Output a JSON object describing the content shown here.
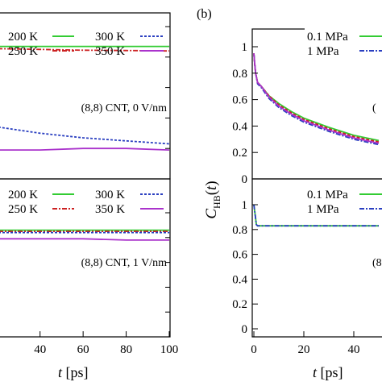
{
  "panel_b_label": "(b)",
  "colors": {
    "200K": "#33cc33",
    "250K": "#cc2222",
    "300K": "#2a3fc0",
    "350K": "#aa33cc",
    "0.1MPa": "#33cc33",
    "1MPa": "#2a3fc0",
    "pressure_other_1": "#cc2222",
    "pressure_other_2": "#aa33cc"
  },
  "chart_data": [
    {
      "type": "line",
      "panel": "left-top",
      "annotation": "(8,8) CNT, 0 V/nm",
      "xlim": [
        0,
        100
      ],
      "ylim": [
        0,
        1
      ],
      "legend": [
        "200 K",
        "250 K",
        "300 K",
        "350 K"
      ],
      "series": [
        {
          "name": "200 K",
          "x": [
            0,
            20,
            40,
            60,
            80,
            100
          ],
          "y": [
            0.87,
            0.87,
            0.87,
            0.87,
            0.87,
            0.87
          ]
        },
        {
          "name": "250 K",
          "x": [
            0,
            20,
            40,
            60,
            80,
            100
          ],
          "y": [
            0.86,
            0.855,
            0.85,
            0.845,
            0.843,
            0.84
          ]
        },
        {
          "name": "300 K",
          "x": [
            0,
            20,
            40,
            60,
            80,
            100
          ],
          "y": [
            0.42,
            0.34,
            0.3,
            0.27,
            0.25,
            0.23
          ]
        },
        {
          "name": "350 K",
          "x": [
            0,
            20,
            40,
            60,
            80,
            100
          ],
          "y": [
            0.2,
            0.19,
            0.19,
            0.2,
            0.2,
            0.19
          ]
        }
      ]
    },
    {
      "type": "line",
      "panel": "left-bottom",
      "annotation": "(8,8) CNT, 1 V/nm",
      "xlabel": "t [ps]",
      "xlim": [
        0,
        100
      ],
      "ylim": [
        0,
        1
      ],
      "xticks": [
        "40",
        "60",
        "80",
        "100"
      ],
      "legend": [
        "200 K",
        "250 K",
        "300 K",
        "350 K"
      ],
      "series": [
        {
          "name": "200 K",
          "x": [
            0,
            20,
            40,
            60,
            80,
            100
          ],
          "y": [
            0.86,
            0.86,
            0.86,
            0.86,
            0.86,
            0.86
          ]
        },
        {
          "name": "250 K",
          "x": [
            0,
            20,
            40,
            60,
            80,
            100
          ],
          "y": [
            0.85,
            0.85,
            0.85,
            0.85,
            0.85,
            0.85
          ]
        },
        {
          "name": "300 K",
          "x": [
            0,
            20,
            40,
            60,
            80,
            100
          ],
          "y": [
            0.84,
            0.84,
            0.84,
            0.84,
            0.84,
            0.84
          ]
        },
        {
          "name": "350 K",
          "x": [
            0,
            20,
            40,
            60,
            80,
            100
          ],
          "y": [
            0.79,
            0.79,
            0.79,
            0.79,
            0.78,
            0.78
          ]
        }
      ]
    },
    {
      "type": "line",
      "panel": "right-top",
      "ylabel": "C_HB(t)",
      "xlim": [
        0,
        100
      ],
      "ylim": [
        0,
        1.1
      ],
      "yticks": [
        "0",
        "0.2",
        "0.4",
        "0.6",
        "0.8",
        "1"
      ],
      "legend": [
        "0.1 MPa",
        "1 MPa"
      ],
      "series": [
        {
          "name": "0.1 MPa",
          "x": [
            0,
            0.3,
            0.7,
            1.5,
            3,
            6,
            10,
            15,
            20,
            30,
            40,
            50
          ],
          "y": [
            0.95,
            0.88,
            0.8,
            0.73,
            0.7,
            0.63,
            0.57,
            0.51,
            0.46,
            0.39,
            0.33,
            0.29
          ]
        },
        {
          "name": "1 MPa",
          "x": [
            0,
            0.3,
            0.7,
            1.5,
            3,
            6,
            10,
            15,
            20,
            30,
            40,
            50
          ],
          "y": [
            0.95,
            0.88,
            0.8,
            0.72,
            0.69,
            0.61,
            0.54,
            0.48,
            0.43,
            0.36,
            0.3,
            0.26
          ]
        },
        {
          "x": [
            0,
            0.3,
            0.7,
            1.5,
            3,
            6,
            10,
            15,
            20,
            30,
            40,
            50
          ],
          "y": [
            0.95,
            0.88,
            0.8,
            0.73,
            0.7,
            0.63,
            0.56,
            0.5,
            0.45,
            0.38,
            0.32,
            0.28
          ]
        },
        {
          "x": [
            0,
            0.3,
            0.7,
            1.5,
            3,
            6,
            10,
            15,
            20,
            30,
            40,
            50
          ],
          "y": [
            0.95,
            0.88,
            0.8,
            0.73,
            0.7,
            0.62,
            0.55,
            0.49,
            0.44,
            0.37,
            0.31,
            0.27
          ]
        }
      ]
    },
    {
      "type": "line",
      "panel": "right-bottom",
      "xlabel": "t [ps]",
      "xlim": [
        0,
        100
      ],
      "ylim": [
        0,
        1.1
      ],
      "xticks": [
        "0",
        "20",
        "40"
      ],
      "yticks": [
        "0",
        "0.2",
        "0.4",
        "0.6",
        "0.8",
        "1"
      ],
      "legend": [
        "0.1 MPa",
        "1 MPa"
      ],
      "series": [
        {
          "name": "0.1 MPa",
          "x": [
            0,
            0.5,
            1,
            1.5,
            2,
            10,
            20,
            30,
            40,
            50
          ],
          "y": [
            1.0,
            0.92,
            0.84,
            0.83,
            0.83,
            0.83,
            0.83,
            0.83,
            0.83,
            0.83
          ]
        },
        {
          "name": "1 MPa",
          "x": [
            0,
            0.5,
            1,
            1.5,
            2,
            10,
            20,
            30,
            40,
            50
          ],
          "y": [
            1.0,
            0.92,
            0.84,
            0.83,
            0.83,
            0.83,
            0.83,
            0.83,
            0.83,
            0.83
          ]
        }
      ]
    }
  ]
}
